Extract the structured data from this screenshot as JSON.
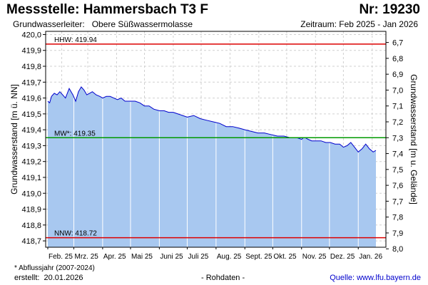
{
  "header": {
    "title": "Messstelle: Hammersbach T3 F",
    "number": "Nr: 19230",
    "aquifer_label": "Grundwasserleiter:",
    "aquifer_value": "Obere Süßwassermolasse",
    "period": "Zeitraum: Feb 2025 - Jan 2026"
  },
  "footer": {
    "footnote": "* Abflussjahr (2007-2024)",
    "created_label": "erstellt:",
    "created_value": "20.01.2026",
    "raw_data": "- Rohdaten -",
    "source": "Quelle:  www.lfu.bayern.de"
  },
  "colors": {
    "fill": "#a8c8f0",
    "line": "#0000cc",
    "hhw": "#dd0000",
    "nnw": "#dd0000",
    "mw": "#009900",
    "grid": "#d0d0d0",
    "month_lines": "#ffffff"
  },
  "chart_data": {
    "type": "area",
    "ylabel_left": "Grundwasserstand [m ü. NN]",
    "ylabel_right": "Grundwasserstand [m u. Gelände]",
    "ylim": [
      418.66,
      420.02
    ],
    "y_ticks": [
      "420,0",
      "419,9",
      "419,8",
      "419,7",
      "419,6",
      "419,5",
      "419,4",
      "419,3",
      "419,2",
      "419,1",
      "419,0",
      "418,9",
      "418,8",
      "418,7"
    ],
    "y_tick_values": [
      420.0,
      419.9,
      419.8,
      419.7,
      419.6,
      419.5,
      419.4,
      419.3,
      419.2,
      419.1,
      419.0,
      418.9,
      418.8,
      418.7
    ],
    "right_ticks": [
      "6,7",
      "6,8",
      "6,9",
      "7,0",
      "7,1",
      "7,2",
      "7,3",
      "7,4",
      "7,5",
      "7,6",
      "7,7",
      "7,8",
      "7,9",
      "8,0"
    ],
    "right_tick_values": [
      6.7,
      6.8,
      6.9,
      7.0,
      7.1,
      7.2,
      7.3,
      7.4,
      7.5,
      7.6,
      7.7,
      7.8,
      7.9,
      8.0
    ],
    "right_offset": 426.65,
    "x_range": [
      "2025-02-01",
      "2026-01-20"
    ],
    "x_labels": [
      "Feb. 25",
      "Mrz. 25",
      "Apr. 25",
      "Mai 25",
      "Juni 25",
      "Juli 25",
      "Aug. 25",
      "Sept. 25",
      "Okt. 25",
      "Nov. 25",
      "Dez. 25",
      "Jan. 26"
    ],
    "x_label_dates": [
      "2025-02-01",
      "2025-03-01",
      "2025-04-01",
      "2025-05-01",
      "2025-06-01",
      "2025-07-01",
      "2025-08-01",
      "2025-09-01",
      "2025-10-01",
      "2025-11-01",
      "2025-12-01",
      "2026-01-01"
    ],
    "reference_lines": [
      {
        "key": "hhw",
        "label": "HHW: 419.94",
        "value": 419.94
      },
      {
        "key": "mw",
        "label": "MW*: 419.35",
        "value": 419.35
      },
      {
        "key": "nnw",
        "label": "NNW: 418.72",
        "value": 418.72
      }
    ],
    "series": [
      {
        "x": [
          "2025-02-01",
          "2025-02-03",
          "2025-02-05",
          "2025-02-08",
          "2025-02-11",
          "2025-02-14",
          "2025-02-17",
          "2025-02-20",
          "2025-02-24",
          "2025-02-28",
          "2025-03-03",
          "2025-03-06",
          "2025-03-09",
          "2025-03-12",
          "2025-03-15",
          "2025-03-18",
          "2025-03-21",
          "2025-03-25",
          "2025-03-29",
          "2025-04-01",
          "2025-04-05",
          "2025-04-09",
          "2025-04-13",
          "2025-04-17",
          "2025-04-21",
          "2025-04-25",
          "2025-05-01",
          "2025-05-06",
          "2025-05-11",
          "2025-05-16",
          "2025-05-21",
          "2025-05-26",
          "2025-06-01",
          "2025-06-06",
          "2025-06-11",
          "2025-06-16",
          "2025-06-21",
          "2025-06-26",
          "2025-07-01",
          "2025-07-08",
          "2025-07-15",
          "2025-07-22",
          "2025-07-29",
          "2025-08-05",
          "2025-08-12",
          "2025-08-19",
          "2025-08-26",
          "2025-09-01",
          "2025-09-08",
          "2025-09-15",
          "2025-09-22",
          "2025-09-29",
          "2025-10-06",
          "2025-10-13",
          "2025-10-20",
          "2025-10-27",
          "2025-11-01",
          "2025-11-03",
          "2025-11-05",
          "2025-11-08",
          "2025-11-12",
          "2025-11-17",
          "2025-11-22",
          "2025-11-27",
          "2025-12-02",
          "2025-12-07",
          "2025-12-12",
          "2025-12-16",
          "2025-12-20",
          "2025-12-24",
          "2025-12-28",
          "2026-01-01",
          "2026-01-05",
          "2026-01-09",
          "2026-01-13",
          "2026-01-17",
          "2026-01-20"
        ],
        "values": [
          419.58,
          419.57,
          419.61,
          419.63,
          419.62,
          419.64,
          419.62,
          419.6,
          419.66,
          419.62,
          419.58,
          419.64,
          419.67,
          419.65,
          419.62,
          419.63,
          419.64,
          419.62,
          419.61,
          419.6,
          419.61,
          419.61,
          419.6,
          419.59,
          419.6,
          419.58,
          419.58,
          419.58,
          419.57,
          419.55,
          419.55,
          419.53,
          419.52,
          419.52,
          419.51,
          419.51,
          419.5,
          419.49,
          419.48,
          419.49,
          419.47,
          419.46,
          419.45,
          419.44,
          419.42,
          419.42,
          419.41,
          419.4,
          419.39,
          419.38,
          419.38,
          419.37,
          419.36,
          419.36,
          419.35,
          419.35,
          419.34,
          419.35,
          419.35,
          419.34,
          419.33,
          419.33,
          419.33,
          419.32,
          419.32,
          419.31,
          419.31,
          419.29,
          419.3,
          419.32,
          419.29,
          419.26,
          419.28,
          419.31,
          419.28,
          419.26,
          419.27
        ]
      }
    ]
  }
}
